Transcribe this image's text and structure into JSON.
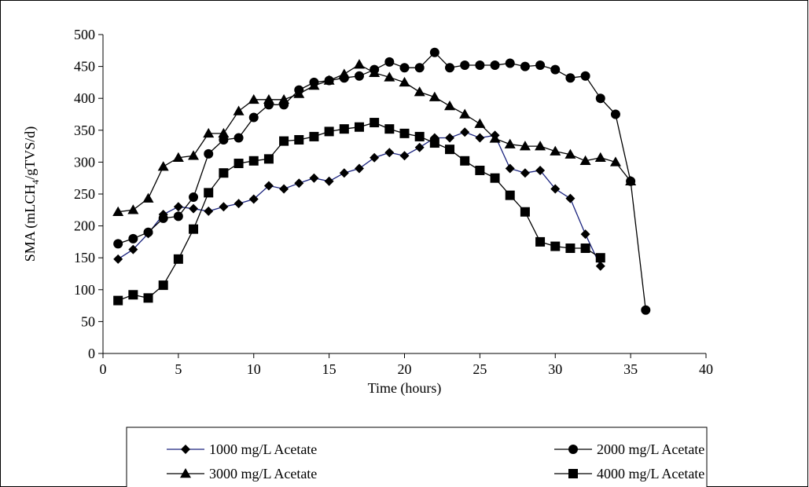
{
  "chart_data": {
    "type": "line",
    "xlabel": "Time (hours)",
    "ylabel_main": "SMA (mLCH",
    "ylabel_sub": "4",
    "ylabel_tail": "/gTVS/d)",
    "xlim": [
      0,
      40
    ],
    "ylim": [
      0,
      500
    ],
    "xticks": [
      0,
      5,
      10,
      15,
      20,
      25,
      30,
      35,
      40
    ],
    "yticks": [
      0,
      50,
      100,
      150,
      200,
      250,
      300,
      350,
      400,
      450,
      500
    ],
    "grid": false,
    "legend_position": "bottom",
    "series": [
      {
        "name": "1000 mg/L Acetate",
        "marker": "diamond",
        "line_color": "#1a237e",
        "x": [
          1,
          2,
          3,
          4,
          5,
          6,
          7,
          8,
          9,
          10,
          11,
          12,
          13,
          14,
          15,
          16,
          17,
          18,
          19,
          20,
          21,
          22,
          23,
          24,
          25,
          26,
          27,
          28,
          29,
          30,
          31,
          32,
          33
        ],
        "y": [
          148,
          163,
          188,
          218,
          230,
          227,
          223,
          230,
          235,
          242,
          263,
          258,
          267,
          275,
          270,
          283,
          290,
          307,
          315,
          310,
          323,
          338,
          338,
          347,
          338,
          342,
          290,
          283,
          287,
          258,
          243,
          187,
          137
        ]
      },
      {
        "name": "2000 mg/L Acetate",
        "marker": "circle",
        "line_color": "#000000",
        "x": [
          1,
          2,
          3,
          4,
          5,
          6,
          7,
          8,
          9,
          10,
          11,
          12,
          13,
          14,
          15,
          16,
          17,
          18,
          19,
          20,
          21,
          22,
          23,
          24,
          25,
          26,
          27,
          28,
          29,
          30,
          31,
          32,
          33,
          34,
          35,
          36
        ],
        "y": [
          172,
          180,
          190,
          212,
          215,
          245,
          313,
          335,
          338,
          370,
          390,
          390,
          413,
          425,
          428,
          432,
          435,
          445,
          457,
          448,
          448,
          472,
          448,
          452,
          452,
          452,
          455,
          450,
          452,
          445,
          432,
          435,
          400,
          375,
          270,
          68
        ]
      },
      {
        "name": "3000 mg/L Acetate",
        "marker": "triangle",
        "line_color": "#000000",
        "x": [
          1,
          2,
          3,
          4,
          5,
          6,
          7,
          8,
          9,
          10,
          11,
          12,
          13,
          14,
          15,
          16,
          17,
          18,
          19,
          20,
          21,
          22,
          23,
          24,
          25,
          26,
          27,
          28,
          29,
          30,
          31,
          32,
          33,
          34,
          35
        ],
        "y": [
          222,
          225,
          243,
          293,
          307,
          310,
          345,
          345,
          380,
          398,
          398,
          398,
          407,
          420,
          428,
          438,
          453,
          440,
          433,
          425,
          410,
          402,
          388,
          375,
          360,
          337,
          328,
          325,
          325,
          317,
          312,
          302,
          307,
          300,
          270
        ]
      },
      {
        "name": "4000 mg/L Acetate",
        "marker": "square",
        "line_color": "#000000",
        "x": [
          1,
          2,
          3,
          4,
          5,
          6,
          7,
          8,
          9,
          10,
          11,
          12,
          13,
          14,
          15,
          16,
          17,
          18,
          19,
          20,
          21,
          22,
          23,
          24,
          25,
          26,
          27,
          28,
          29,
          30,
          31,
          32,
          33
        ],
        "y": [
          83,
          92,
          87,
          107,
          148,
          195,
          252,
          283,
          298,
          302,
          305,
          333,
          335,
          340,
          348,
          352,
          355,
          362,
          352,
          345,
          340,
          330,
          320,
          302,
          287,
          275,
          248,
          222,
          175,
          168,
          165,
          165,
          150
        ]
      }
    ]
  }
}
